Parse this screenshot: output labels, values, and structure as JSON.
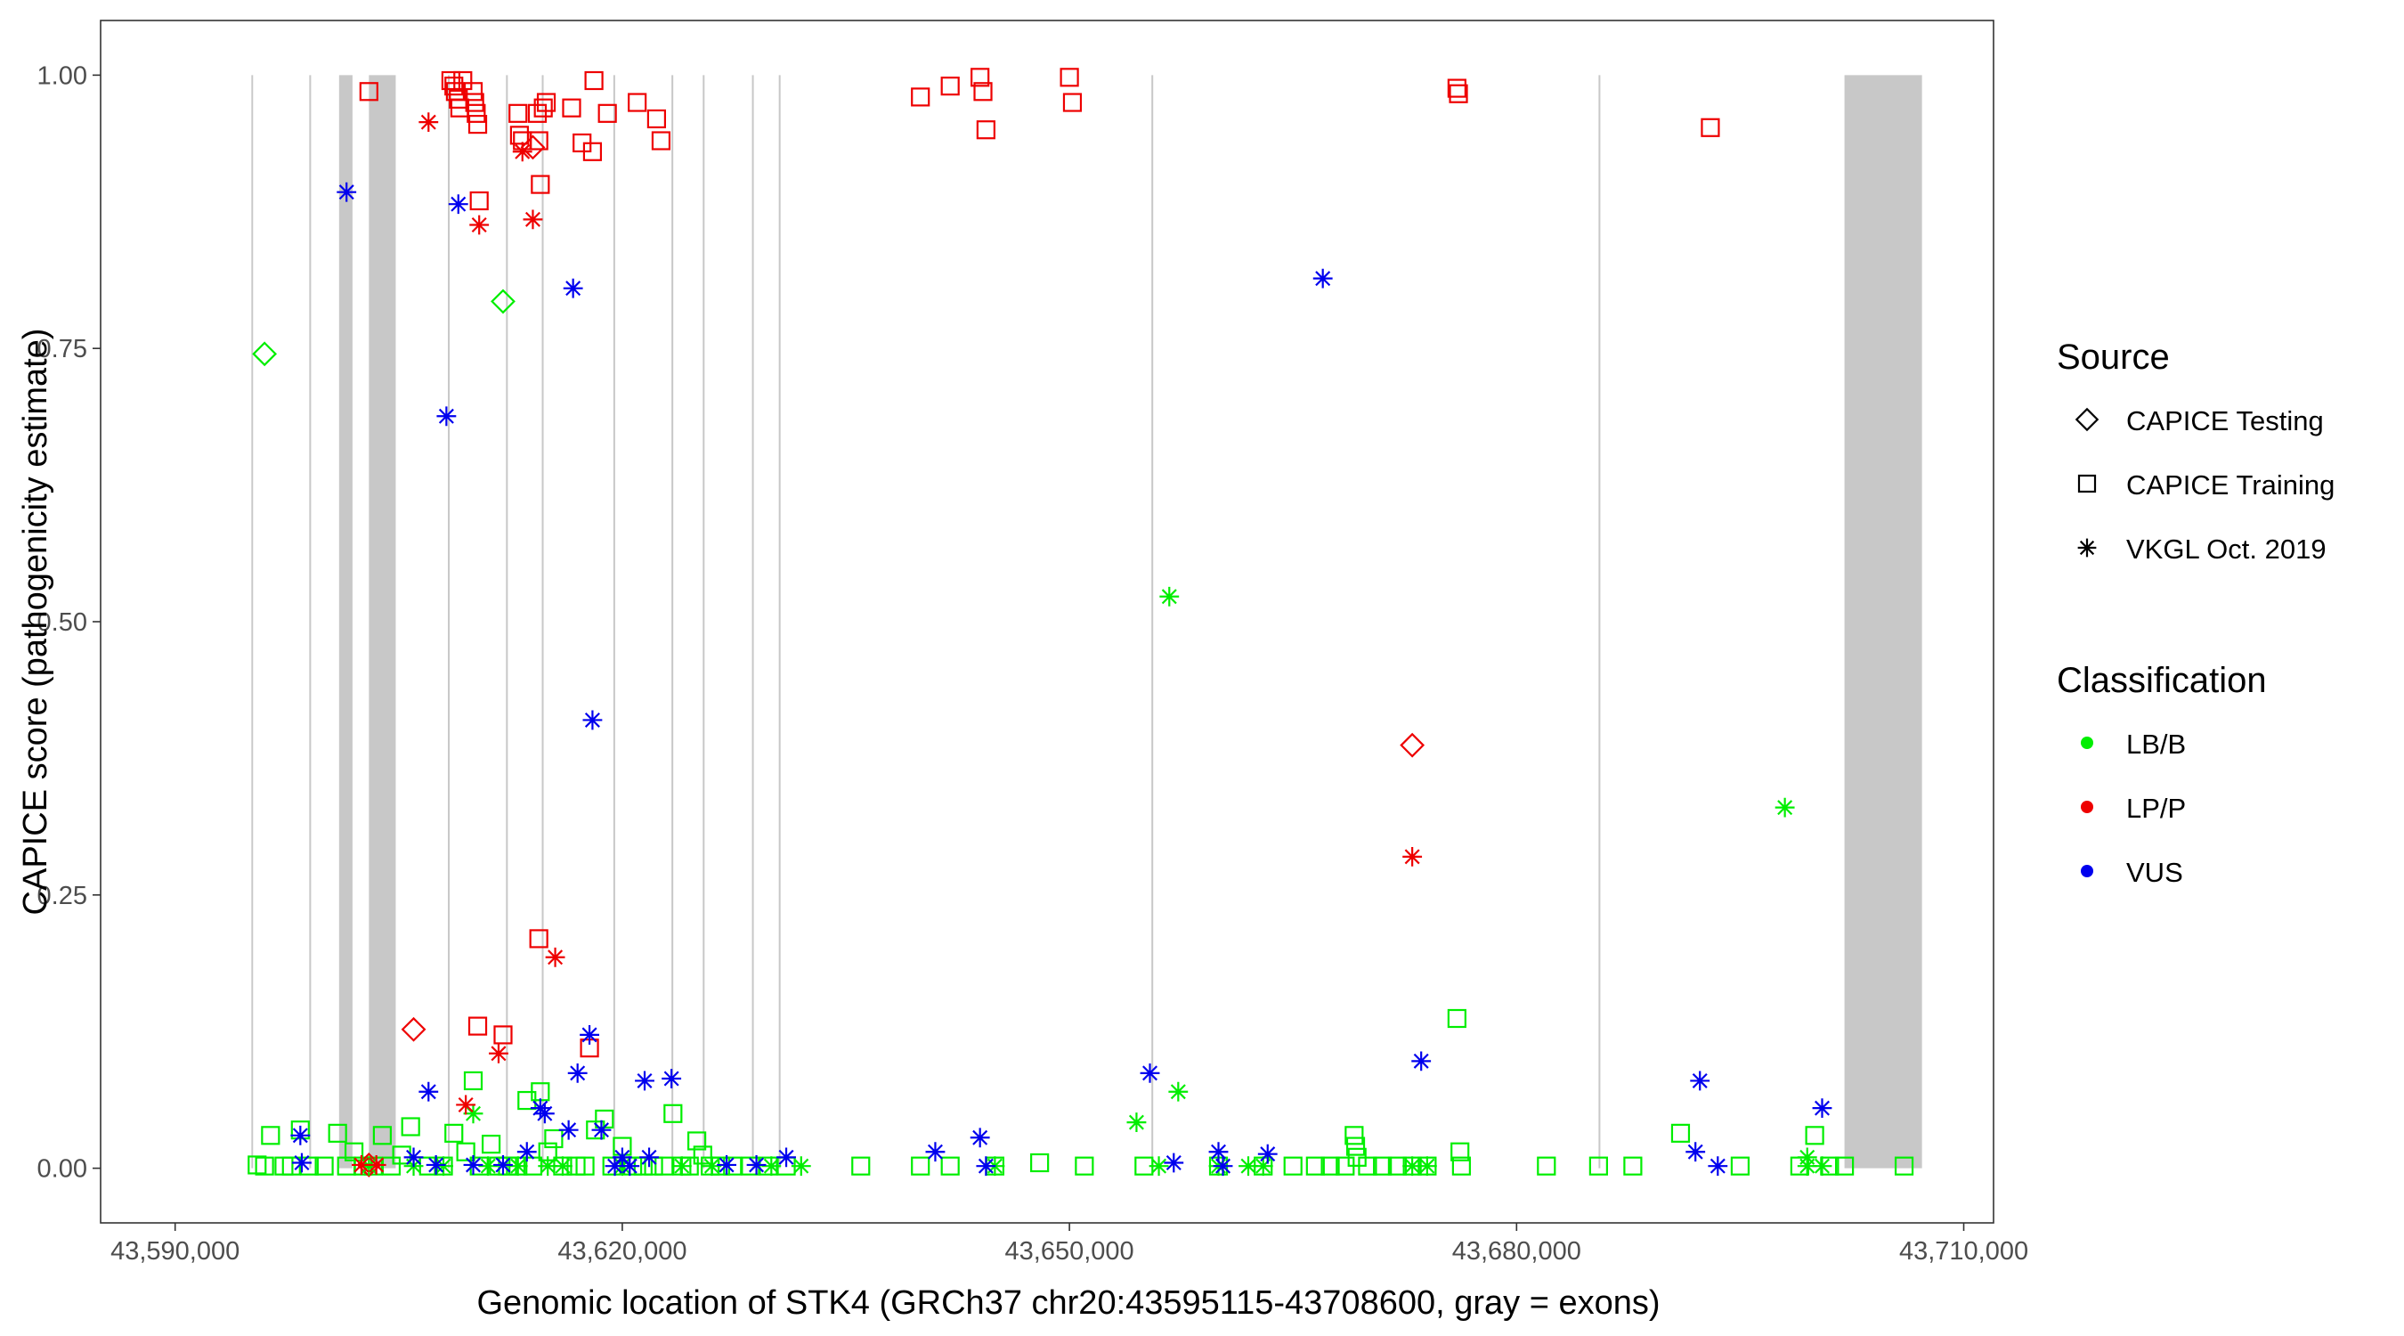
{
  "chart_data": {
    "type": "scatter",
    "xlabel": "Genomic location of STK4 (GRCh37 chr20:43595115-43708600, gray = exons)",
    "ylabel": "CAPICE score (pathogenicity estimate)",
    "xlim": [
      43585000,
      43712000
    ],
    "ylim": [
      -0.05,
      1.05
    ],
    "x_ticks": [
      43590000,
      43620000,
      43650000,
      43680000,
      43710000
    ],
    "x_tick_labels": [
      "43,590,000",
      "43,620,000",
      "43,650,000",
      "43,680,000",
      "43,710,000"
    ],
    "y_ticks": [
      0,
      0.25,
      0.5,
      0.75,
      1.0
    ],
    "y_tick_labels": [
      "0.00",
      "0.25",
      "0.50",
      "0.75",
      "1.00"
    ],
    "exons": [
      [
        43595115,
        43595230
      ],
      [
        43599000,
        43599120
      ],
      [
        43601000,
        43601900
      ],
      [
        43603000,
        43604800
      ],
      [
        43608300,
        43608420
      ],
      [
        43612200,
        43612320
      ],
      [
        43614600,
        43614720
      ],
      [
        43619400,
        43619520
      ],
      [
        43623300,
        43623420
      ],
      [
        43625400,
        43625520
      ],
      [
        43628700,
        43628820
      ],
      [
        43630500,
        43630620
      ],
      [
        43655500,
        43655620
      ],
      [
        43685500,
        43685620
      ],
      [
        43702000,
        43707200
      ]
    ],
    "legend_source": {
      "title": "Source",
      "items": [
        {
          "label": "CAPICE Testing",
          "shape": "diamond"
        },
        {
          "label": "CAPICE Training",
          "shape": "square"
        },
        {
          "label": "VKGL Oct. 2019",
          "shape": "asterisk"
        }
      ]
    },
    "legend_class": {
      "title": "Classification",
      "items": [
        {
          "label": "LB/B",
          "color": "#00ee00"
        },
        {
          "label": "LP/P",
          "color": "#ee0000"
        },
        {
          "label": "VUS",
          "color": "#0000ee"
        }
      ]
    },
    "series": [
      {
        "name": "CAPICE Testing LB/B",
        "source": "CAPICE Testing",
        "classification": "LB/B",
        "points": [
          [
            43596000,
            0.745
          ],
          [
            43612000,
            0.793
          ]
        ]
      },
      {
        "name": "CAPICE Testing LP/P",
        "source": "CAPICE Testing",
        "classification": "LP/P",
        "points": [
          [
            43614000,
            0.934
          ],
          [
            43606000,
            0.127
          ],
          [
            43603000,
            0.003
          ],
          [
            43673000,
            0.387
          ]
        ]
      },
      {
        "name": "CAPICE Training LB/B",
        "source": "CAPICE Training",
        "classification": "LB/B",
        "points": [
          [
            43595500,
            0.003
          ],
          [
            43596000,
            0.002
          ],
          [
            43596400,
            0.03
          ],
          [
            43597300,
            0.002
          ],
          [
            43597800,
            0.002
          ],
          [
            43598400,
            0.035
          ],
          [
            43599000,
            0.002
          ],
          [
            43600000,
            0.002
          ],
          [
            43600900,
            0.032
          ],
          [
            43601500,
            0.002
          ],
          [
            43602000,
            0.015
          ],
          [
            43602600,
            0.002
          ],
          [
            43603300,
            0.002
          ],
          [
            43603900,
            0.03
          ],
          [
            43604500,
            0.002
          ],
          [
            43605200,
            0.012
          ],
          [
            43605800,
            0.038
          ],
          [
            43607000,
            0.002
          ],
          [
            43608000,
            0.002
          ],
          [
            43608700,
            0.032
          ],
          [
            43609500,
            0.015
          ],
          [
            43610000,
            0.08
          ],
          [
            43610400,
            0.002
          ],
          [
            43611200,
            0.022
          ],
          [
            43611700,
            0.002
          ],
          [
            43612300,
            0.002
          ],
          [
            43613000,
            0.002
          ],
          [
            43613600,
            0.062
          ],
          [
            43614000,
            0.002
          ],
          [
            43614500,
            0.07
          ],
          [
            43615000,
            0.015
          ],
          [
            43615400,
            0.027
          ],
          [
            43616000,
            0.002
          ],
          [
            43616900,
            0.002
          ],
          [
            43617500,
            0.002
          ],
          [
            43618200,
            0.035
          ],
          [
            43618800,
            0.045
          ],
          [
            43619300,
            0.002
          ],
          [
            43620000,
            0.02
          ],
          [
            43620700,
            0.002
          ],
          [
            43621400,
            0.002
          ],
          [
            43622100,
            0.002
          ],
          [
            43622800,
            0.002
          ],
          [
            43623400,
            0.05
          ],
          [
            43624000,
            0.002
          ],
          [
            43624500,
            0.002
          ],
          [
            43625000,
            0.025
          ],
          [
            43625400,
            0.012
          ],
          [
            43625900,
            0.002
          ],
          [
            43626600,
            0.002
          ],
          [
            43627400,
            0.002
          ],
          [
            43628600,
            0.002
          ],
          [
            43629800,
            0.002
          ],
          [
            43631000,
            0.002
          ],
          [
            43636000,
            0.002
          ],
          [
            43640000,
            0.002
          ],
          [
            43642000,
            0.002
          ],
          [
            43645000,
            0.002
          ],
          [
            43648000,
            0.005
          ],
          [
            43651000,
            0.002
          ],
          [
            43655000,
            0.002
          ],
          [
            43660000,
            0.002
          ],
          [
            43663000,
            0.002
          ],
          [
            43665000,
            0.002
          ],
          [
            43666500,
            0.002
          ],
          [
            43667500,
            0.002
          ],
          [
            43668500,
            0.002
          ],
          [
            43669100,
            0.03
          ],
          [
            43669200,
            0.02
          ],
          [
            43669300,
            0.01
          ],
          [
            43670000,
            0.002
          ],
          [
            43671000,
            0.002
          ],
          [
            43672000,
            0.002
          ],
          [
            43673000,
            0.002
          ],
          [
            43674000,
            0.002
          ],
          [
            43676000,
            0.137
          ],
          [
            43676200,
            0.015
          ],
          [
            43676300,
            0.002
          ],
          [
            43682000,
            0.002
          ],
          [
            43685500,
            0.002
          ],
          [
            43687800,
            0.002
          ],
          [
            43691000,
            0.032
          ],
          [
            43695000,
            0.002
          ],
          [
            43699000,
            0.002
          ],
          [
            43700000,
            0.03
          ],
          [
            43701000,
            0.002
          ],
          [
            43702000,
            0.002
          ],
          [
            43706000,
            0.002
          ]
        ]
      },
      {
        "name": "CAPICE Training LP/P",
        "source": "CAPICE Training",
        "classification": "LP/P",
        "points": [
          [
            43603000,
            0.985
          ],
          [
            43608500,
            0.995
          ],
          [
            43608700,
            0.99
          ],
          [
            43608800,
            0.985
          ],
          [
            43609000,
            0.978
          ],
          [
            43609100,
            0.97
          ],
          [
            43609300,
            0.995
          ],
          [
            43610000,
            0.985
          ],
          [
            43610100,
            0.975
          ],
          [
            43610200,
            0.965
          ],
          [
            43610300,
            0.955
          ],
          [
            43610400,
            0.885
          ],
          [
            43613000,
            0.965
          ],
          [
            43613100,
            0.945
          ],
          [
            43613300,
            0.94
          ],
          [
            43614300,
            0.965
          ],
          [
            43614400,
            0.94
          ],
          [
            43614500,
            0.9
          ],
          [
            43614700,
            0.97
          ],
          [
            43614900,
            0.975
          ],
          [
            43616600,
            0.97
          ],
          [
            43617300,
            0.938
          ],
          [
            43618000,
            0.93
          ],
          [
            43618100,
            0.995
          ],
          [
            43619000,
            0.965
          ],
          [
            43621000,
            0.975
          ],
          [
            43622300,
            0.96
          ],
          [
            43622600,
            0.94
          ],
          [
            43640000,
            0.98
          ],
          [
            43642000,
            0.99
          ],
          [
            43644000,
            0.998
          ],
          [
            43644200,
            0.985
          ],
          [
            43644400,
            0.95
          ],
          [
            43650000,
            0.998
          ],
          [
            43650200,
            0.975
          ],
          [
            43676000,
            0.988
          ],
          [
            43676100,
            0.983
          ],
          [
            43693000,
            0.952
          ],
          [
            43610300,
            0.13
          ],
          [
            43612000,
            0.122
          ],
          [
            43614400,
            0.21
          ],
          [
            43617800,
            0.11
          ]
        ]
      },
      {
        "name": "VKGL LB/B",
        "source": "VKGL Oct. 2019",
        "classification": "LB/B",
        "points": [
          [
            43603000,
            0.002
          ],
          [
            43606000,
            0.002
          ],
          [
            43608000,
            0.002
          ],
          [
            43610000,
            0.05
          ],
          [
            43611000,
            0.002
          ],
          [
            43613000,
            0.002
          ],
          [
            43615000,
            0.002
          ],
          [
            43616000,
            0.002
          ],
          [
            43620000,
            0.002
          ],
          [
            43624000,
            0.002
          ],
          [
            43626000,
            0.002
          ],
          [
            43630000,
            0.002
          ],
          [
            43632000,
            0.002
          ],
          [
            43645000,
            0.002
          ],
          [
            43656000,
            0.002
          ],
          [
            43660000,
            0.002
          ],
          [
            43662000,
            0.002
          ],
          [
            43663000,
            0.002
          ],
          [
            43673000,
            0.002
          ],
          [
            43674000,
            0.002
          ],
          [
            43699500,
            0.002
          ],
          [
            43700500,
            0.002
          ],
          [
            43656700,
            0.523
          ],
          [
            43657300,
            0.07
          ],
          [
            43654500,
            0.042
          ],
          [
            43698000,
            0.33
          ],
          [
            43699500,
            0.01
          ]
        ]
      },
      {
        "name": "VKGL LP/P",
        "source": "VKGL Oct. 2019",
        "classification": "LP/P",
        "points": [
          [
            43607000,
            0.957
          ],
          [
            43610400,
            0.863
          ],
          [
            43614000,
            0.868
          ],
          [
            43613300,
            0.93
          ],
          [
            43615500,
            0.193
          ],
          [
            43609500,
            0.058
          ],
          [
            43611700,
            0.105
          ],
          [
            43673000,
            0.285
          ],
          [
            43602500,
            0.003
          ],
          [
            43603500,
            0.003
          ]
        ]
      },
      {
        "name": "VKGL VUS",
        "source": "VKGL Oct. 2019",
        "classification": "VUS",
        "points": [
          [
            43601500,
            0.893
          ],
          [
            43609000,
            0.882
          ],
          [
            43608200,
            0.688
          ],
          [
            43616700,
            0.805
          ],
          [
            43618000,
            0.41
          ],
          [
            43667000,
            0.814
          ],
          [
            43607000,
            0.07
          ],
          [
            43617800,
            0.122
          ],
          [
            43617000,
            0.087
          ],
          [
            43613600,
            0.015
          ],
          [
            43614500,
            0.055
          ],
          [
            43614800,
            0.05
          ],
          [
            43616400,
            0.035
          ],
          [
            43618600,
            0.035
          ],
          [
            43620000,
            0.01
          ],
          [
            43621500,
            0.08
          ],
          [
            43623300,
            0.082
          ],
          [
            43621800,
            0.01
          ],
          [
            43627000,
            0.003
          ],
          [
            43631000,
            0.01
          ],
          [
            43629000,
            0.003
          ],
          [
            43598400,
            0.03
          ],
          [
            43598500,
            0.005
          ],
          [
            43606000,
            0.01
          ],
          [
            43607500,
            0.003
          ],
          [
            43610000,
            0.003
          ],
          [
            43612000,
            0.003
          ],
          [
            43619500,
            0.002
          ],
          [
            43620500,
            0.002
          ],
          [
            43641000,
            0.015
          ],
          [
            43644000,
            0.028
          ],
          [
            43644400,
            0.002
          ],
          [
            43655400,
            0.087
          ],
          [
            43657000,
            0.005
          ],
          [
            43660000,
            0.015
          ],
          [
            43660300,
            0.002
          ],
          [
            43673600,
            0.098
          ],
          [
            43663300,
            0.013
          ],
          [
            43692300,
            0.08
          ],
          [
            43692000,
            0.015
          ],
          [
            43693500,
            0.002
          ],
          [
            43700500,
            0.055
          ]
        ]
      }
    ]
  }
}
